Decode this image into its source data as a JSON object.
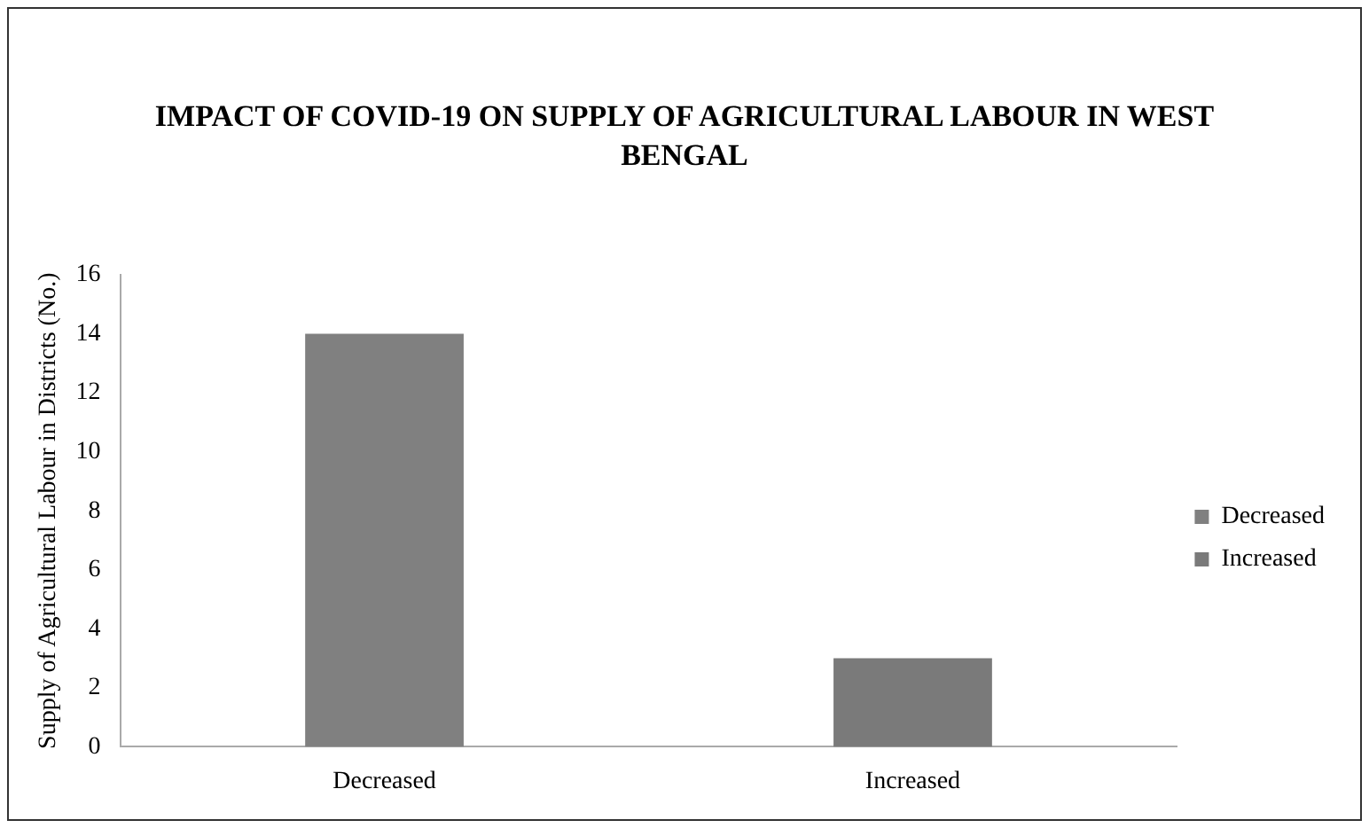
{
  "chart_data": {
    "type": "bar",
    "title": "IMPACT OF COVID-19 ON SUPPLY OF AGRICULTURAL LABOUR IN WEST BENGAL",
    "ylabel": "Supply of Agricultural Labour in Districts (No.)",
    "categories": [
      "Decreased",
      "Increased"
    ],
    "series": [
      {
        "name": "Decreased",
        "color": "#808080",
        "values": [
          14,
          null
        ]
      },
      {
        "name": "Increased",
        "color": "#7a7a7a",
        "values": [
          null,
          3
        ]
      }
    ],
    "ylim": [
      0,
      16
    ],
    "yticks": [
      0,
      2,
      4,
      6,
      8,
      10,
      12,
      14,
      16
    ],
    "grid": false,
    "legend": "right"
  }
}
